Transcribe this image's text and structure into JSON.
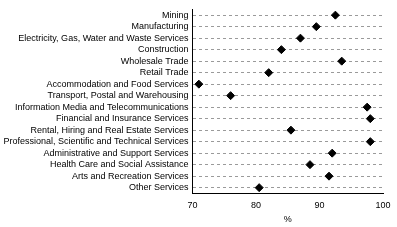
{
  "chart_data": {
    "type": "scatter",
    "orientation": "horizontal",
    "marker": "diamond",
    "color": "#000000",
    "grid": true,
    "x_label": "%",
    "categories": [
      "Mining",
      "Manufacturing",
      "Electricity, Gas, Water and Waste Services",
      "Construction",
      "Wholesale Trade",
      "Retail Trade",
      "Accommodation and Food Services",
      "Transport, Postal and Warehousing",
      "Information Media and Telecommunications",
      "Financial and Insurance Services",
      "Rental, Hiring and Real Estate Services",
      "Professional, Scientific and Technical Services",
      "Administrative and Support Services",
      "Health Care and Social Assistance",
      "Arts and Recreation Services",
      "Other Services"
    ],
    "values": [
      92.5,
      89.5,
      87,
      84,
      93.5,
      82,
      71,
      76,
      97.5,
      98,
      85.5,
      98,
      92,
      88.5,
      91.5,
      80.5
    ],
    "xlim": [
      70,
      100
    ],
    "xticks": [
      70,
      80,
      90,
      100
    ]
  }
}
